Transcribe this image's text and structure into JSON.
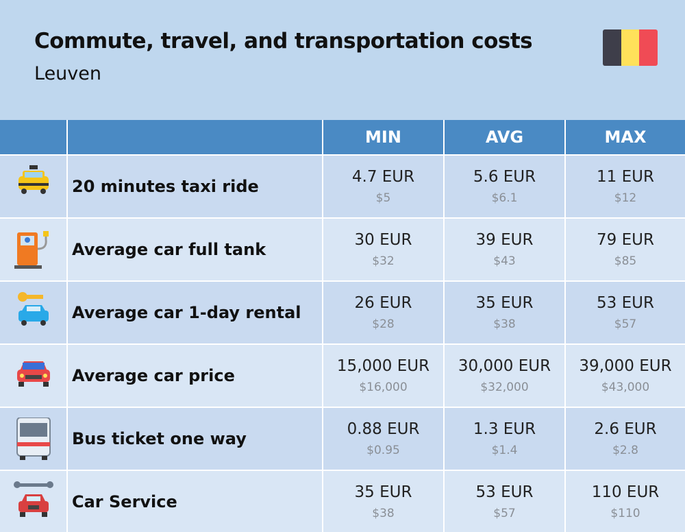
{
  "header": {
    "title": "Commute, travel, and transportation costs",
    "subtitle": "Leuven"
  },
  "table": {
    "columns": [
      "MIN",
      "AVG",
      "MAX"
    ],
    "rows": [
      {
        "label": "20 minutes taxi ride",
        "values": [
          [
            "4.7 EUR",
            "$5"
          ],
          [
            "5.6 EUR",
            "$6.1"
          ],
          [
            "11 EUR",
            "$12"
          ]
        ]
      },
      {
        "label": "Average car full tank",
        "values": [
          [
            "30 EUR",
            "$32"
          ],
          [
            "39 EUR",
            "$43"
          ],
          [
            "79 EUR",
            "$85"
          ]
        ]
      },
      {
        "label": "Average car 1-day rental",
        "values": [
          [
            "26 EUR",
            "$28"
          ],
          [
            "35 EUR",
            "$38"
          ],
          [
            "53 EUR",
            "$57"
          ]
        ]
      },
      {
        "label": "Average car price",
        "values": [
          [
            "15,000 EUR",
            "$16,000"
          ],
          [
            "30,000 EUR",
            "$32,000"
          ],
          [
            "39,000 EUR",
            "$43,000"
          ]
        ]
      },
      {
        "label": "Bus ticket one way",
        "values": [
          [
            "0.88 EUR",
            "$0.95"
          ],
          [
            "1.3 EUR",
            "$1.4"
          ],
          [
            "2.6 EUR",
            "$2.8"
          ]
        ]
      },
      {
        "label": "Car Service",
        "values": [
          [
            "35 EUR",
            "$38"
          ],
          [
            "53 EUR",
            "$57"
          ],
          [
            "110 EUR",
            "$110"
          ]
        ]
      }
    ]
  }
}
